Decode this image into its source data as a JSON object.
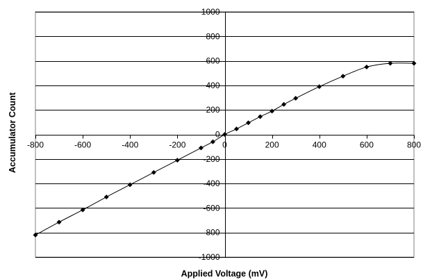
{
  "chart_data": {
    "type": "scatter",
    "title": "",
    "xlabel": "Applied Voltage (mV)",
    "ylabel": "Accumulator Count",
    "xlim": [
      -800,
      800
    ],
    "ylim": [
      -1000,
      1000
    ],
    "x_ticks": [
      -800,
      -600,
      -400,
      -200,
      0,
      200,
      400,
      600,
      800
    ],
    "y_ticks": [
      1000,
      800,
      600,
      400,
      200,
      0,
      -200,
      -400,
      -600,
      -800,
      -1000
    ],
    "grid": "horizontal",
    "legend": "none",
    "marker": "diamond",
    "line": "smooth",
    "series": [
      {
        "x": [
          -800,
          -700,
          -600,
          -500,
          -400,
          -300,
          -200,
          -100,
          -50,
          0,
          50,
          100,
          150,
          200,
          250,
          300,
          400,
          500,
          600,
          700,
          800
        ],
        "y": [
          -820,
          -715,
          -615,
          -510,
          -410,
          -310,
          -210,
          -110,
          -60,
          0,
          45,
          95,
          145,
          190,
          245,
          295,
          390,
          475,
          550,
          580,
          580
        ]
      }
    ],
    "colors": {
      "line": "#000000",
      "marker": "#000000",
      "grid": "#000000",
      "background": "#ffffff"
    }
  }
}
